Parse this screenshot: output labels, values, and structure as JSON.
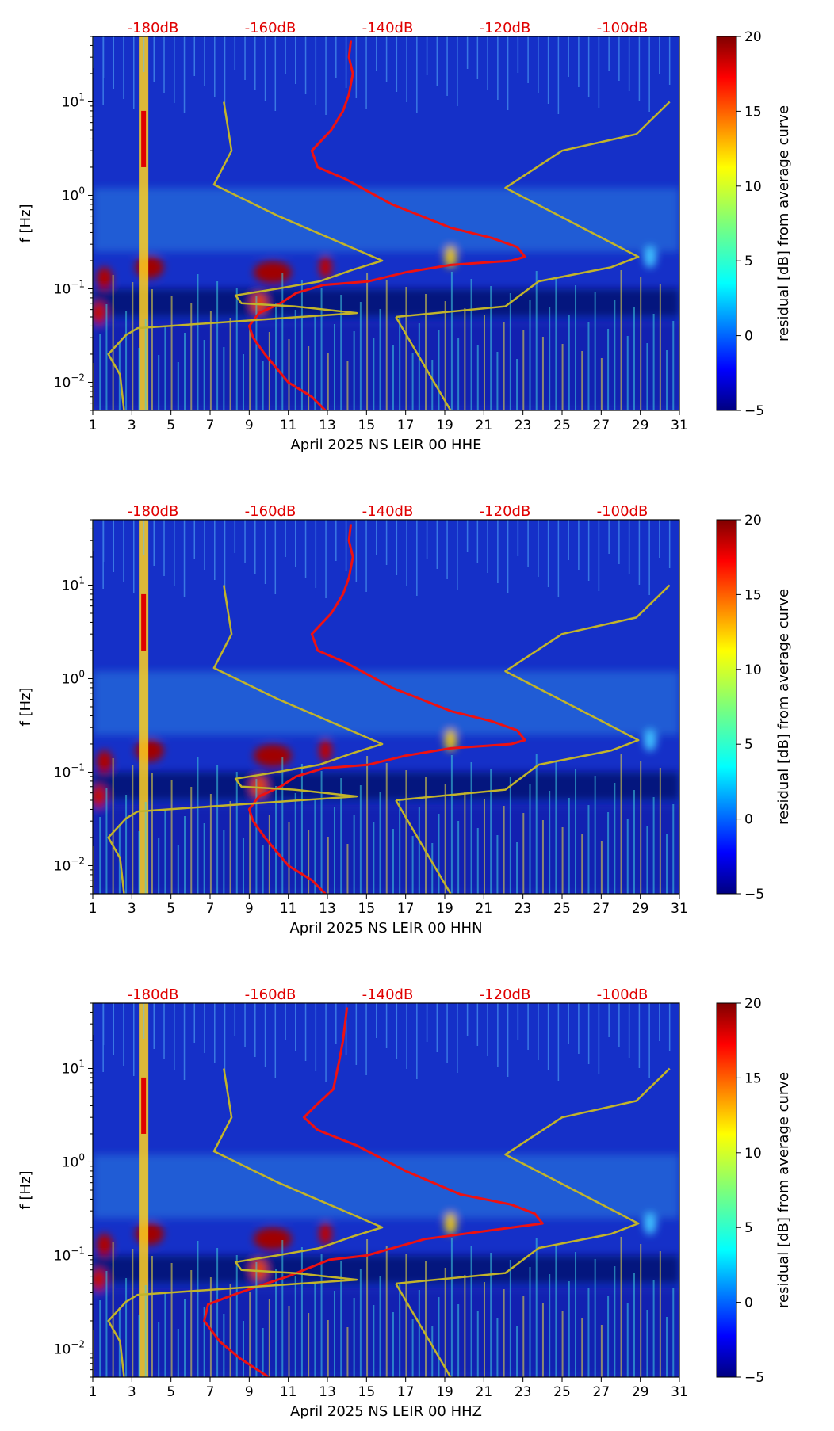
{
  "chart_data": [
    {
      "type": "heatmap",
      "xlabel": "April 2025 NS LEIR 00 HHE",
      "ylabel": "f [Hz]",
      "x_ticks": [
        "1",
        "3",
        "5",
        "7",
        "9",
        "11",
        "13",
        "15",
        "17",
        "19",
        "21",
        "23",
        "25",
        "27",
        "29",
        "31"
      ],
      "xlim": [
        1,
        31
      ],
      "y_scale": "log",
      "ylim": [
        0.005,
        50
      ],
      "y_ticks": [
        {
          "base": "10",
          "exp": "1",
          "value": 10
        },
        {
          "base": "10",
          "exp": "0",
          "value": 1
        },
        {
          "base": "10",
          "exp": "−1",
          "value": 0.1
        },
        {
          "base": "10",
          "exp": "−2",
          "value": 0.01
        }
      ],
      "top_labels": [
        "-180dB",
        "-160dB",
        "-140dB",
        "-120dB",
        "-100dB"
      ],
      "colorbar": {
        "label": "residual [dB] from average curve",
        "min": -5,
        "max": 20,
        "ticks": [
          "20",
          "15",
          "10",
          "5",
          "0",
          "−5"
        ]
      },
      "lines": [
        {
          "color": "#ee1111",
          "points": [
            [
              14.2,
              45
            ],
            [
              14.1,
              30
            ],
            [
              14.3,
              20
            ],
            [
              14.1,
              12
            ],
            [
              13.8,
              8
            ],
            [
              13.2,
              5
            ],
            [
              12.2,
              3
            ],
            [
              12.5,
              2
            ],
            [
              13.9,
              1.5
            ],
            [
              16.3,
              0.8
            ],
            [
              19.3,
              0.45
            ],
            [
              21.4,
              0.35
            ],
            [
              22.7,
              0.28
            ],
            [
              23.1,
              0.22
            ],
            [
              22.4,
              0.2
            ],
            [
              19.3,
              0.18
            ],
            [
              17,
              0.15
            ],
            [
              15.1,
              0.12
            ],
            [
              12.8,
              0.11
            ],
            [
              11.4,
              0.09
            ],
            [
              10.6,
              0.07
            ],
            [
              9.5,
              0.055
            ],
            [
              9,
              0.04
            ],
            [
              9.2,
              0.03
            ],
            [
              9.8,
              0.02
            ],
            [
              11,
              0.01
            ],
            [
              12.2,
              0.007
            ],
            [
              12.9,
              0.005
            ]
          ]
        },
        {
          "color": "#c2b42a",
          "points": [
            [
              7.7,
              10
            ],
            [
              8.1,
              3
            ],
            [
              7.2,
              1.3
            ],
            [
              10.5,
              0.6
            ],
            [
              13.1,
              0.35
            ],
            [
              15.8,
              0.2
            ],
            [
              14.3,
              0.16
            ],
            [
              12.6,
              0.12
            ],
            [
              10.4,
              0.1
            ],
            [
              8.3,
              0.085
            ],
            [
              8.6,
              0.07
            ],
            [
              11.3,
              0.065
            ],
            [
              14.5,
              0.055
            ],
            [
              3.3,
              0.038
            ],
            [
              2.7,
              0.032
            ],
            [
              1.8,
              0.02
            ],
            [
              2.4,
              0.012
            ],
            [
              2.6,
              0.005
            ]
          ]
        },
        {
          "color": "#c2b42a",
          "points": [
            [
              16.5,
              0.05
            ],
            [
              22.1,
              0.065
            ],
            [
              23.8,
              0.12
            ],
            [
              27.5,
              0.17
            ],
            [
              28.9,
              0.22
            ],
            [
              22.1,
              1.2
            ],
            [
              25,
              3
            ],
            [
              28.8,
              4.5
            ],
            [
              30.5,
              10
            ]
          ]
        },
        {
          "color": "#c2b42a",
          "points": [
            [
              16.5,
              0.05
            ],
            [
              19.3,
              0.005
            ]
          ]
        }
      ]
    },
    {
      "type": "heatmap",
      "xlabel": "April 2025 NS LEIR 00 HHN",
      "ylabel": "f [Hz]",
      "x_ticks": [
        "1",
        "3",
        "5",
        "7",
        "9",
        "11",
        "13",
        "15",
        "17",
        "19",
        "21",
        "23",
        "25",
        "27",
        "29",
        "31"
      ],
      "xlim": [
        1,
        31
      ],
      "y_scale": "log",
      "ylim": [
        0.005,
        50
      ],
      "y_ticks": [
        {
          "base": "10",
          "exp": "1",
          "value": 10
        },
        {
          "base": "10",
          "exp": "0",
          "value": 1
        },
        {
          "base": "10",
          "exp": "−1",
          "value": 0.1
        },
        {
          "base": "10",
          "exp": "−2",
          "value": 0.01
        }
      ],
      "top_labels": [
        "-180dB",
        "-160dB",
        "-140dB",
        "-120dB",
        "-100dB"
      ],
      "colorbar": {
        "label": "residual [dB] from average curve",
        "min": -5,
        "max": 20,
        "ticks": [
          "20",
          "15",
          "10",
          "5",
          "0",
          "−5"
        ]
      },
      "lines": [
        {
          "color": "#ee1111",
          "points": [
            [
              14.2,
              45
            ],
            [
              14.1,
              30
            ],
            [
              14.3,
              20
            ],
            [
              14.1,
              12
            ],
            [
              13.8,
              8
            ],
            [
              13.2,
              5
            ],
            [
              12.2,
              3
            ],
            [
              12.5,
              2
            ],
            [
              13.9,
              1.5
            ],
            [
              16.3,
              0.8
            ],
            [
              19.3,
              0.45
            ],
            [
              21.4,
              0.35
            ],
            [
              22.7,
              0.28
            ],
            [
              23.1,
              0.22
            ],
            [
              22.4,
              0.2
            ],
            [
              19.3,
              0.18
            ],
            [
              17,
              0.15
            ],
            [
              15.1,
              0.12
            ],
            [
              12.8,
              0.11
            ],
            [
              11.4,
              0.09
            ],
            [
              10.6,
              0.07
            ],
            [
              9.5,
              0.055
            ],
            [
              9,
              0.04
            ],
            [
              9.2,
              0.03
            ],
            [
              9.8,
              0.02
            ],
            [
              11,
              0.01
            ],
            [
              12.2,
              0.007
            ],
            [
              12.9,
              0.005
            ]
          ]
        },
        {
          "color": "#c2b42a",
          "points": [
            [
              7.7,
              10
            ],
            [
              8.1,
              3
            ],
            [
              7.2,
              1.3
            ],
            [
              10.5,
              0.6
            ],
            [
              13.1,
              0.35
            ],
            [
              15.8,
              0.2
            ],
            [
              14.3,
              0.16
            ],
            [
              12.6,
              0.12
            ],
            [
              10.4,
              0.1
            ],
            [
              8.3,
              0.085
            ],
            [
              8.6,
              0.07
            ],
            [
              11.3,
              0.065
            ],
            [
              14.5,
              0.055
            ],
            [
              3.3,
              0.038
            ],
            [
              2.7,
              0.032
            ],
            [
              1.8,
              0.02
            ],
            [
              2.4,
              0.012
            ],
            [
              2.6,
              0.005
            ]
          ]
        },
        {
          "color": "#c2b42a",
          "points": [
            [
              16.5,
              0.05
            ],
            [
              22.1,
              0.065
            ],
            [
              23.8,
              0.12
            ],
            [
              27.5,
              0.17
            ],
            [
              28.9,
              0.22
            ],
            [
              22.1,
              1.2
            ],
            [
              25,
              3
            ],
            [
              28.8,
              4.5
            ],
            [
              30.5,
              10
            ]
          ]
        },
        {
          "color": "#c2b42a",
          "points": [
            [
              16.5,
              0.05
            ],
            [
              19.3,
              0.005
            ]
          ]
        }
      ]
    },
    {
      "type": "heatmap",
      "xlabel": "April 2025 NS LEIR 00 HHZ",
      "ylabel": "f [Hz]",
      "x_ticks": [
        "1",
        "3",
        "5",
        "7",
        "9",
        "11",
        "13",
        "15",
        "17",
        "19",
        "21",
        "23",
        "25",
        "27",
        "29",
        "31"
      ],
      "xlim": [
        1,
        31
      ],
      "y_scale": "log",
      "ylim": [
        0.005,
        50
      ],
      "y_ticks": [
        {
          "base": "10",
          "exp": "1",
          "value": 10
        },
        {
          "base": "10",
          "exp": "0",
          "value": 1
        },
        {
          "base": "10",
          "exp": "−1",
          "value": 0.1
        },
        {
          "base": "10",
          "exp": "−2",
          "value": 0.01
        }
      ],
      "top_labels": [
        "-180dB",
        "-160dB",
        "-140dB",
        "-120dB",
        "-100dB"
      ],
      "colorbar": {
        "label": "residual [dB] from average curve",
        "min": -5,
        "max": 20,
        "ticks": [
          "20",
          "15",
          "10",
          "5",
          "0",
          "−5"
        ]
      },
      "lines": [
        {
          "color": "#ee1111",
          "points": [
            [
              14,
              45
            ],
            [
              13.9,
              30
            ],
            [
              13.8,
              20
            ],
            [
              13.6,
              12
            ],
            [
              13.3,
              6
            ],
            [
              12.4,
              4
            ],
            [
              11.8,
              3
            ],
            [
              12.5,
              2.2
            ],
            [
              14.5,
              1.5
            ],
            [
              17,
              0.8
            ],
            [
              19.8,
              0.45
            ],
            [
              22.4,
              0.35
            ],
            [
              23.6,
              0.28
            ],
            [
              24,
              0.22
            ],
            [
              22.5,
              0.2
            ],
            [
              18,
              0.15
            ],
            [
              15,
              0.1
            ],
            [
              13.1,
              0.09
            ],
            [
              11,
              0.06
            ],
            [
              8.5,
              0.04
            ],
            [
              6.9,
              0.03
            ],
            [
              6.7,
              0.02
            ],
            [
              7.5,
              0.012
            ],
            [
              8.5,
              0.008
            ],
            [
              10,
              0.005
            ]
          ]
        },
        {
          "color": "#c2b42a",
          "points": [
            [
              7.7,
              10
            ],
            [
              8.1,
              3
            ],
            [
              7.2,
              1.3
            ],
            [
              10.5,
              0.6
            ],
            [
              13.1,
              0.35
            ],
            [
              15.8,
              0.2
            ],
            [
              14.3,
              0.16
            ],
            [
              12.6,
              0.12
            ],
            [
              10.4,
              0.1
            ],
            [
              8.3,
              0.085
            ],
            [
              8.6,
              0.07
            ],
            [
              11.3,
              0.065
            ],
            [
              14.5,
              0.055
            ],
            [
              3.3,
              0.038
            ],
            [
              2.7,
              0.032
            ],
            [
              1.8,
              0.02
            ],
            [
              2.4,
              0.012
            ],
            [
              2.6,
              0.005
            ]
          ]
        },
        {
          "color": "#c2b42a",
          "points": [
            [
              16.5,
              0.05
            ],
            [
              22.1,
              0.065
            ],
            [
              23.8,
              0.12
            ],
            [
              27.5,
              0.17
            ],
            [
              28.9,
              0.22
            ],
            [
              22.1,
              1.2
            ],
            [
              25,
              3
            ],
            [
              28.8,
              4.5
            ],
            [
              30.5,
              10
            ]
          ]
        },
        {
          "color": "#c2b42a",
          "points": [
            [
              16.5,
              0.05
            ],
            [
              19.3,
              0.005
            ]
          ]
        }
      ]
    }
  ]
}
